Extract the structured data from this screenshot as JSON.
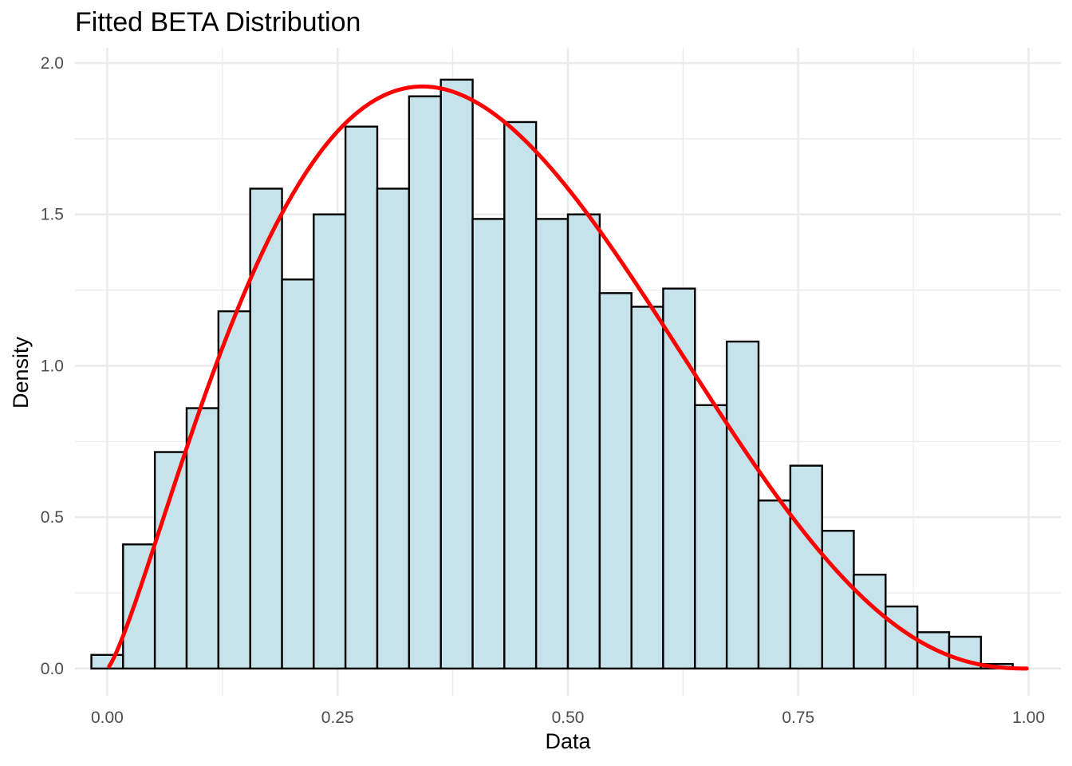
{
  "chart_data": {
    "type": "bar",
    "title": "Fitted BETA Distribution",
    "xlabel": "Data",
    "ylabel": "Density",
    "xlim": [
      -0.035,
      1.035
    ],
    "ylim": [
      -0.09,
      2.05
    ],
    "grid": true,
    "legend": "none",
    "x_ticks": [
      {
        "value": 0.0,
        "label": "0.00"
      },
      {
        "value": 0.25,
        "label": "0.25"
      },
      {
        "value": 0.5,
        "label": "0.50"
      },
      {
        "value": 0.75,
        "label": "0.75"
      },
      {
        "value": 1.0,
        "label": "1.00"
      }
    ],
    "y_ticks": [
      {
        "value": 0.0,
        "label": "0.0"
      },
      {
        "value": 0.5,
        "label": "0.5"
      },
      {
        "value": 1.0,
        "label": "1.0"
      },
      {
        "value": 1.5,
        "label": "1.5"
      },
      {
        "value": 2.0,
        "label": "2.0"
      }
    ],
    "x_minor_ticks": [
      0.125,
      0.375,
      0.625,
      0.875
    ],
    "y_minor_ticks": [
      0.25,
      0.75,
      1.25,
      1.75
    ],
    "histogram": {
      "bin_edges": [
        -0.0172,
        0.0172,
        0.0517,
        0.0862,
        0.1207,
        0.1552,
        0.1897,
        0.2241,
        0.2586,
        0.2931,
        0.3276,
        0.3621,
        0.3966,
        0.431,
        0.4655,
        0.5,
        0.5345,
        0.569,
        0.6034,
        0.6379,
        0.6724,
        0.7069,
        0.7414,
        0.7759,
        0.8103,
        0.8448,
        0.8793,
        0.9138,
        0.9483,
        0.9828,
        1.0172
      ],
      "density": [
        0.045,
        0.41,
        0.715,
        0.86,
        1.18,
        1.585,
        1.285,
        1.5,
        1.79,
        1.585,
        1.89,
        1.945,
        1.485,
        1.805,
        1.485,
        1.5,
        1.24,
        1.195,
        1.255,
        0.87,
        1.08,
        0.555,
        0.67,
        0.455,
        0.31,
        0.205,
        0.12,
        0.105,
        0.015,
        0.0
      ],
      "fill": "#c6e3ec",
      "edge": "#000000"
    },
    "series": [
      {
        "type": "line",
        "alpha": 2.3,
        "beta": 3.5,
        "color": "#ff0000"
      }
    ]
  }
}
